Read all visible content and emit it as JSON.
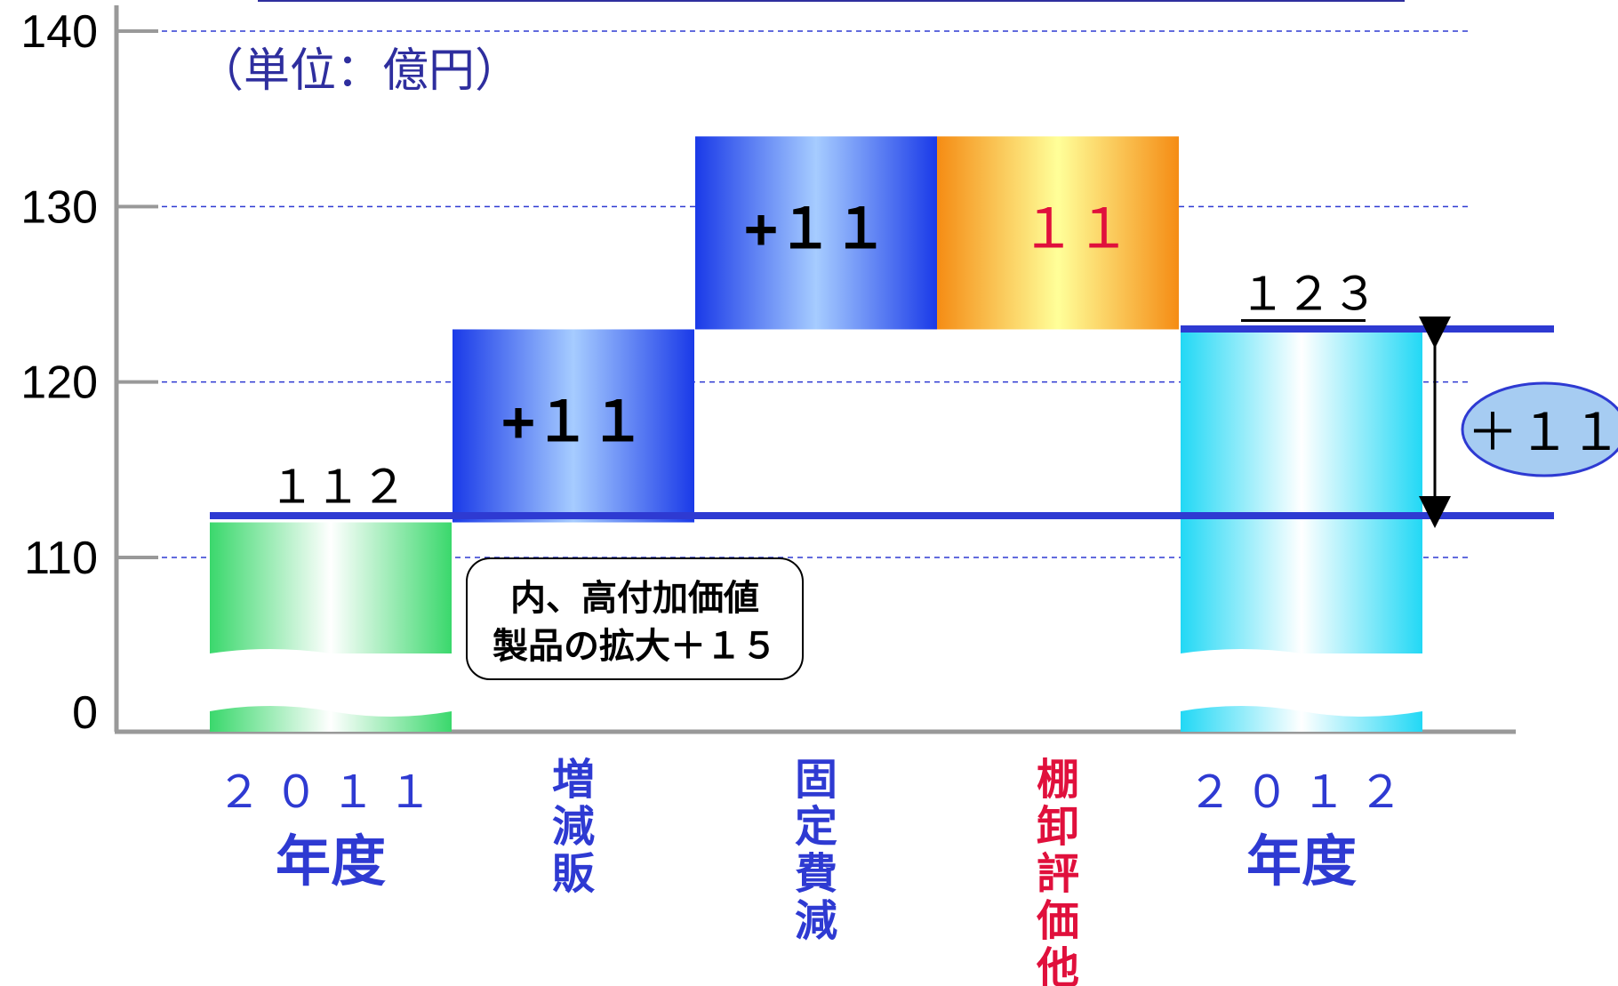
{
  "chart_data": {
    "type": "bar",
    "subtype": "waterfall",
    "unit_label": "（単位：億円）",
    "y_ticks": [
      "140",
      "130",
      "120",
      "110",
      "0"
    ],
    "axis_break": true,
    "grid": "dashed-horizontal",
    "categories": [
      "２０１１\n年度",
      "増\n減\n販",
      "固\n定\n費\n減",
      "棚\n卸\n評\n価\n他",
      "２０１２\n年度"
    ],
    "steps": [
      {
        "category": "２０１１年度",
        "kind": "total",
        "value": 112,
        "label": "１１２",
        "color": "#3ad86c"
      },
      {
        "category": "増減販",
        "kind": "increase",
        "value": 11,
        "label": "+１１",
        "color": "#1a3ae8"
      },
      {
        "category": "固定費減",
        "kind": "increase",
        "value": 11,
        "label": "+１１",
        "color": "#1a3ae8"
      },
      {
        "category": "棚卸評価他",
        "kind": "decrease",
        "value": -11,
        "label": "１１",
        "color": "#f58c14"
      },
      {
        "category": "２０１２年度",
        "kind": "total",
        "value": 123,
        "label": "１２３",
        "color": "#22d8f5"
      }
    ],
    "category_colors": [
      "#2e3ad2",
      "#2e3ad2",
      "#2e3ad2",
      "#e0103c",
      "#2e3ad2"
    ],
    "difference": {
      "label": "＋１１",
      "from": 112,
      "to": 123
    },
    "annotation": {
      "line1": "内、高付加価値",
      "line2": "製品の拡大＋１５"
    }
  }
}
